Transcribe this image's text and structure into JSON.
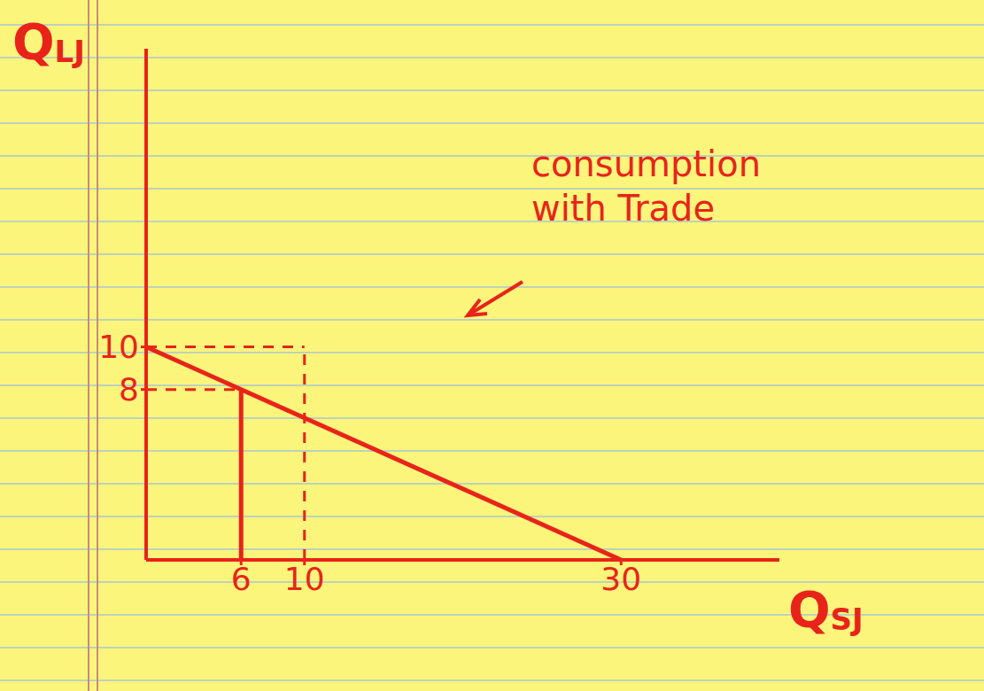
{
  "chart_data": {
    "type": "line",
    "xlabel": {
      "text": "Q",
      "subscript": "SJ"
    },
    "ylabel": {
      "text": "Q",
      "subscript": "LJ"
    },
    "xlim": [
      0,
      40
    ],
    "ylim": [
      0,
      24
    ],
    "xticks": [
      6,
      10,
      30
    ],
    "yticks": [
      8,
      10
    ],
    "grid": false,
    "series": [
      {
        "x": [
          0,
          30
        ],
        "values": [
          10,
          0
        ],
        "color": "#e8241a",
        "line_style": "solid"
      },
      {
        "x": [
          0,
          6
        ],
        "values": [
          8,
          8
        ],
        "color": "#e8241a",
        "line_style": "dashed"
      },
      {
        "x": [
          6,
          6
        ],
        "values": [
          0,
          8
        ],
        "color": "#e8241a",
        "line_style": "solid"
      },
      {
        "x": [
          0,
          10
        ],
        "values": [
          10,
          10
        ],
        "color": "#e8241a",
        "line_style": "dashed"
      },
      {
        "x": [
          10,
          10
        ],
        "values": [
          0,
          10
        ],
        "color": "#e8241a",
        "line_style": "dashed"
      }
    ],
    "annotations": [
      {
        "text": "consumption with Trade"
      }
    ]
  }
}
